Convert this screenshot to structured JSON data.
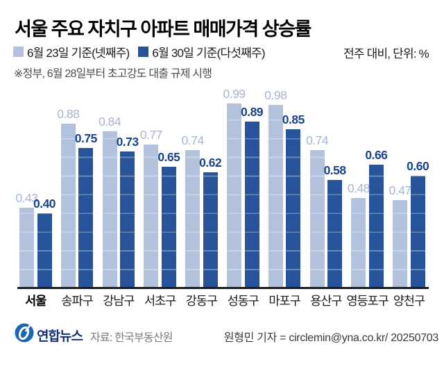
{
  "title": "서울 주요 자치구 아파트 매매가격 상승률",
  "legend": {
    "series1_label": "6월 23일 기준(넷째주)",
    "series2_label": "6월 30일 기준(다섯째주)",
    "unit_note": "전주 대비, 단위: %"
  },
  "note": "※정부, 6월 28일부터 초고강도 대출 규제 시행",
  "colors": {
    "bar_light": "#b2c2dd",
    "bar_dark": "#265399",
    "label_light": "#a6b5d3",
    "label_dark": "#1a438f",
    "axis": "#1c1c1c",
    "logo_blue": "#1a66b4",
    "logo_navy": "#113279"
  },
  "chart_data": {
    "type": "bar",
    "title": "서울 주요 자치구 아파트 매매가격 상승률",
    "categories": [
      "서울",
      "송파구",
      "강남구",
      "서초구",
      "강동구",
      "성동구",
      "마포구",
      "용산구",
      "영등포구",
      "양천구"
    ],
    "series": [
      {
        "name": "6월 23일 기준(넷째주)",
        "values": [
          0.43,
          0.88,
          0.84,
          0.77,
          0.74,
          0.99,
          0.98,
          0.74,
          0.48,
          0.47
        ]
      },
      {
        "name": "6월 30일 기준(다섯째주)",
        "values": [
          0.4,
          0.75,
          0.73,
          0.65,
          0.62,
          0.89,
          0.85,
          0.58,
          0.66,
          0.6
        ]
      }
    ],
    "xlabel": "",
    "ylabel": "전주 대비, 단위: %",
    "ylim": [
      0,
      1.0
    ],
    "grid": "horizontal gridlines every 0.1, shown as light lines over bars",
    "legend_position": "top-left",
    "value_labels": "shown above every bar, two decimals",
    "emphasized_category": "서울"
  },
  "footer": {
    "logo_text": "연합뉴스",
    "source": "자료: 한국부동산원",
    "credit": "원형민 기자 = circlemin@yna.co.kr/ 20250703"
  }
}
